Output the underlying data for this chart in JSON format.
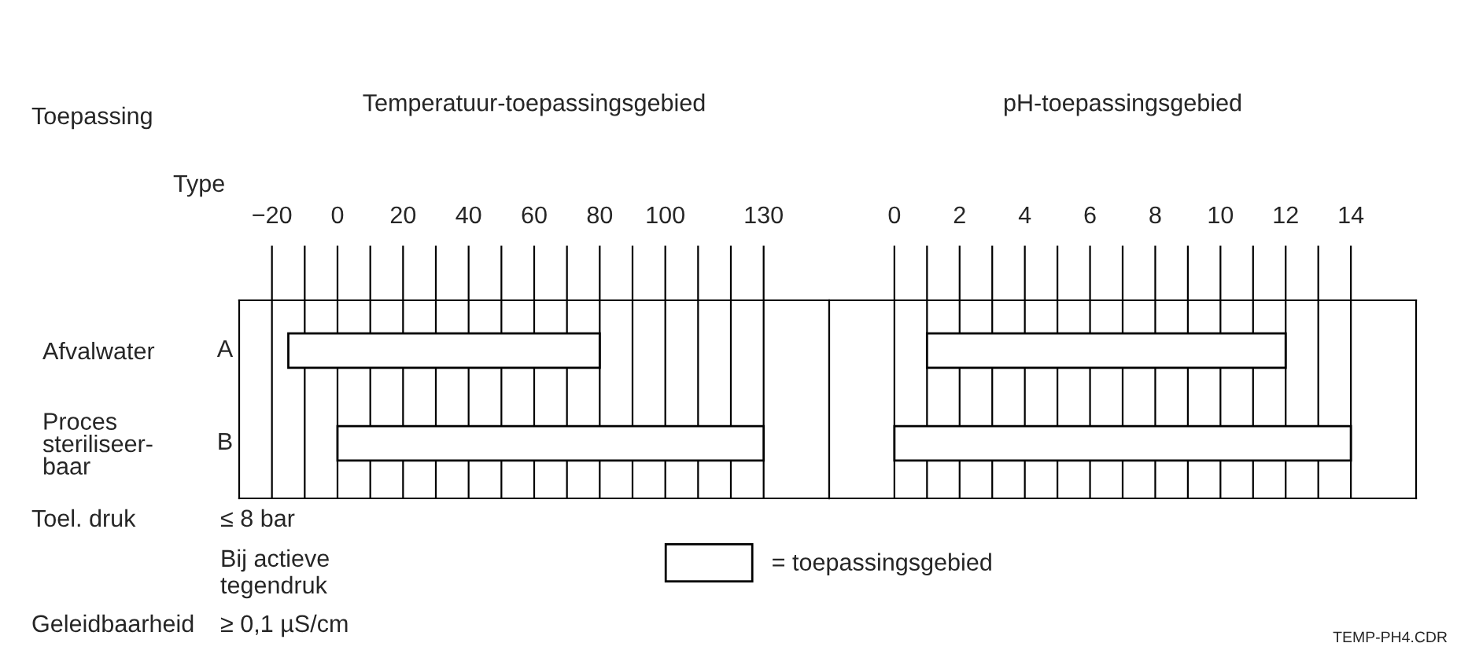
{
  "chart_data": [
    {
      "type": "bar",
      "orientation": "horizontal",
      "title": "Temperatuur-toepassingsgebied",
      "categories": [
        "Afvalwater",
        "Proces\nsteriliseer-\nbaar"
      ],
      "series": [
        {
          "name": "= toepassingsgebied",
          "color": "#ffffff",
          "values": [
            95,
            130
          ],
          "base": [
            -15,
            0
          ]
        }
      ],
      "xlim": [
        -30,
        150
      ],
      "xticks": [
        -20,
        {
          "value": -10,
          "label": null
        },
        0,
        {
          "value": 10,
          "label": null
        },
        20,
        {
          "value": 30,
          "label": null
        },
        40,
        {
          "value": 50,
          "label": null
        },
        60,
        {
          "value": 70,
          "label": null
        },
        80,
        {
          "value": 90,
          "label": null
        },
        100,
        {
          "value": 110,
          "label": null
        },
        {
          "value": 120,
          "label": null
        },
        130
      ],
      "grid": "x",
      "legend": "bottom",
      "annotations": [
        "Toepassing",
        "Type",
        "A",
        "B",
        "Toel. druk",
        "≤ 8 bar",
        "Bij actieve\ntegendruk",
        "Geleidbaarheid",
        "≥ 0,1 µS/cm",
        "TEMP-PH4.CDR"
      ]
    },
    {
      "type": "bar",
      "orientation": "horizontal",
      "title": "pH-toepassingsgebied",
      "categories": [
        null,
        null
      ],
      "series": [
        {
          "color": "#ffffff",
          "values": [
            11,
            14
          ],
          "base": [
            1,
            0
          ]
        }
      ],
      "xlim": [
        -2,
        16
      ],
      "xticks": [
        0,
        {
          "value": 1,
          "label": null
        },
        2,
        {
          "value": 3,
          "label": null
        },
        4,
        {
          "value": 5,
          "label": null
        },
        6,
        {
          "value": 7,
          "label": null
        },
        8,
        {
          "value": 9,
          "label": null
        },
        10,
        {
          "value": 11,
          "label": null
        },
        12,
        {
          "value": 13,
          "label": null
        },
        14
      ],
      "grid": "x",
      "tick_labels": "x"
    }
  ]
}
